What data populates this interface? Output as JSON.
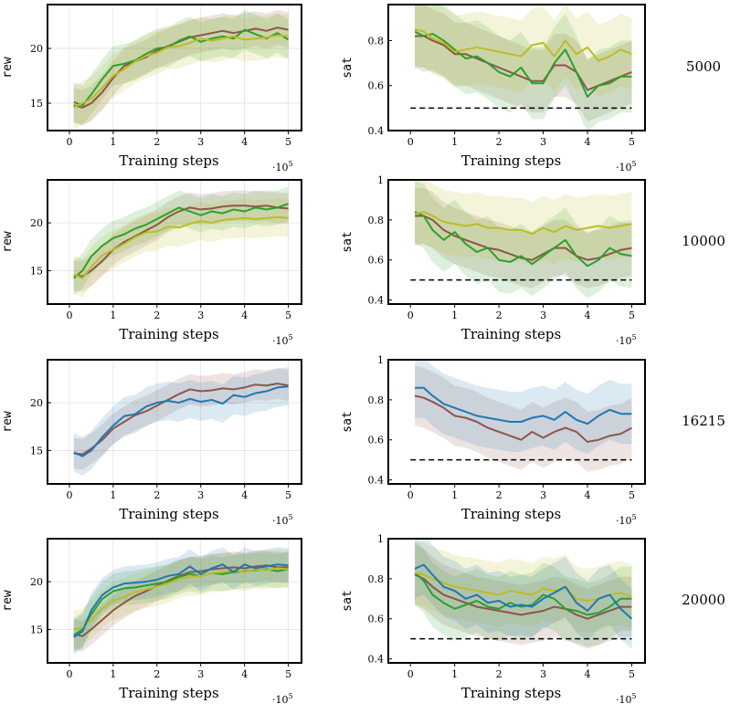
{
  "figure": {
    "xlabel": "Training steps",
    "x_multiplier_base": "·10",
    "x_multiplier_exp": "5",
    "rew_ylabel": "rew",
    "sat_ylabel": "sat",
    "colors": {
      "brown": "#8c564b",
      "green": "#2ca02c",
      "olive": "#bcbd22",
      "blue": "#1f77b4",
      "threshold": "#000000"
    }
  },
  "chart_data": [
    {
      "type": "line",
      "row_label": "5000",
      "metric": "rew",
      "xlabel": "Training steps",
      "ylabel": "rew",
      "xlim": [
        -0.5,
        5.3
      ],
      "ylim": [
        12.5,
        24
      ],
      "xticks": [
        "0",
        "1",
        "2",
        "3",
        "4",
        "5"
      ],
      "yticks": [
        "15",
        "20"
      ],
      "grid": true,
      "x": [
        0.1,
        0.3,
        0.5,
        0.75,
        1.0,
        1.25,
        1.5,
        1.75,
        2.0,
        2.25,
        2.5,
        2.75,
        3.0,
        3.25,
        3.5,
        3.75,
        4.0,
        4.25,
        4.5,
        4.75,
        5.0
      ],
      "series": [
        {
          "color": "brown",
          "values": [
            14.8,
            14.6,
            15.0,
            16.0,
            17.3,
            18.4,
            18.8,
            19.2,
            19.8,
            20.2,
            20.6,
            21.0,
            21.2,
            21.4,
            21.6,
            21.4,
            21.6,
            21.8,
            21.6,
            21.9,
            21.7
          ],
          "band": 1.6
        },
        {
          "color": "green",
          "values": [
            15.1,
            14.8,
            15.8,
            17.2,
            18.4,
            18.6,
            18.9,
            19.5,
            20.0,
            20.1,
            20.7,
            21.1,
            20.6,
            20.9,
            21.1,
            20.9,
            21.7,
            21.3,
            20.9,
            21.4,
            20.8
          ],
          "band": 1.8
        },
        {
          "color": "olive",
          "values": [
            14.6,
            15.0,
            15.4,
            16.4,
            17.5,
            18.1,
            18.8,
            19.3,
            19.6,
            20.1,
            20.2,
            20.5,
            20.9,
            20.7,
            20.9,
            21.1,
            20.8,
            20.9,
            21.0,
            21.2,
            21.1
          ],
          "band": 2.0
        }
      ]
    },
    {
      "type": "line",
      "row_label": "5000",
      "metric": "sat",
      "xlabel": "Training steps",
      "ylabel": "sat",
      "xlim": [
        -0.5,
        5.3
      ],
      "ylim": [
        0.4,
        0.96
      ],
      "xticks": [
        "0",
        "1",
        "2",
        "3",
        "4",
        "5"
      ],
      "yticks": [
        "0.4",
        "0.6",
        "0.8"
      ],
      "grid": false,
      "threshold": 0.5,
      "x": [
        0.1,
        0.3,
        0.5,
        0.75,
        1.0,
        1.25,
        1.5,
        1.75,
        2.0,
        2.25,
        2.5,
        2.75,
        3.0,
        3.25,
        3.5,
        3.75,
        4.0,
        4.25,
        4.5,
        4.75,
        5.0
      ],
      "series": [
        {
          "color": "brown",
          "values": [
            0.82,
            0.82,
            0.8,
            0.78,
            0.74,
            0.74,
            0.72,
            0.7,
            0.68,
            0.66,
            0.64,
            0.62,
            0.62,
            0.69,
            0.69,
            0.66,
            0.58,
            0.6,
            0.62,
            0.64,
            0.66
          ],
          "band": 0.14
        },
        {
          "color": "green",
          "values": [
            0.84,
            0.82,
            0.83,
            0.8,
            0.76,
            0.72,
            0.73,
            0.7,
            0.66,
            0.64,
            0.68,
            0.61,
            0.61,
            0.7,
            0.76,
            0.66,
            0.55,
            0.6,
            0.61,
            0.64,
            0.64
          ],
          "band": 0.16
        },
        {
          "color": "olive",
          "values": [
            0.85,
            0.84,
            0.81,
            0.79,
            0.75,
            0.76,
            0.77,
            0.76,
            0.75,
            0.74,
            0.73,
            0.78,
            0.79,
            0.73,
            0.8,
            0.74,
            0.77,
            0.71,
            0.73,
            0.76,
            0.74
          ],
          "band": 0.16
        }
      ]
    },
    {
      "type": "line",
      "row_label": "10000",
      "metric": "rew",
      "xlabel": "Training steps",
      "ylabel": "rew",
      "xlim": [
        -0.5,
        5.3
      ],
      "ylim": [
        11.5,
        24.5
      ],
      "xticks": [
        "0",
        "1",
        "2",
        "3",
        "4",
        "5"
      ],
      "yticks": [
        "15",
        "20"
      ],
      "grid": true,
      "x": [
        0.1,
        0.3,
        0.5,
        0.75,
        1.0,
        1.25,
        1.5,
        1.75,
        2.0,
        2.25,
        2.5,
        2.75,
        3.0,
        3.25,
        3.5,
        3.75,
        4.0,
        4.25,
        4.5,
        4.75,
        5.0
      ],
      "series": [
        {
          "color": "brown",
          "values": [
            14.5,
            14.4,
            15.0,
            16.0,
            17.2,
            18.0,
            18.6,
            19.2,
            19.8,
            20.6,
            21.2,
            21.6,
            21.4,
            21.5,
            21.7,
            21.8,
            21.8,
            21.7,
            21.8,
            21.6,
            21.5
          ],
          "band": 1.6
        },
        {
          "color": "green",
          "values": [
            14.2,
            15.0,
            16.5,
            17.6,
            18.4,
            18.8,
            19.4,
            19.8,
            20.4,
            21.0,
            21.6,
            21.2,
            20.8,
            21.2,
            21.0,
            21.4,
            21.2,
            21.6,
            21.4,
            21.6,
            22.0
          ],
          "band": 1.8
        },
        {
          "color": "olive",
          "values": [
            14.6,
            14.2,
            15.4,
            16.6,
            17.2,
            17.8,
            18.5,
            19.0,
            19.1,
            19.6,
            19.5,
            19.9,
            20.2,
            20.0,
            20.3,
            20.4,
            20.5,
            20.4,
            20.5,
            20.6,
            20.5
          ],
          "band": 2.0
        }
      ]
    },
    {
      "type": "line",
      "row_label": "10000",
      "metric": "sat",
      "xlabel": "Training steps",
      "ylabel": "sat",
      "xlim": [
        -0.5,
        5.3
      ],
      "ylim": [
        0.38,
        1.0
      ],
      "xticks": [
        "0",
        "1",
        "2",
        "3",
        "4",
        "5"
      ],
      "yticks": [
        "0.4",
        "0.6",
        "0.8",
        "1"
      ],
      "grid": false,
      "threshold": 0.5,
      "x": [
        0.1,
        0.3,
        0.5,
        0.75,
        1.0,
        1.25,
        1.5,
        1.75,
        2.0,
        2.25,
        2.5,
        2.75,
        3.0,
        3.25,
        3.5,
        3.75,
        4.0,
        4.25,
        4.5,
        4.75,
        5.0
      ],
      "series": [
        {
          "color": "brown",
          "values": [
            0.82,
            0.82,
            0.8,
            0.75,
            0.72,
            0.7,
            0.68,
            0.66,
            0.65,
            0.63,
            0.61,
            0.6,
            0.63,
            0.66,
            0.66,
            0.62,
            0.6,
            0.61,
            0.63,
            0.65,
            0.66
          ],
          "band": 0.14
        },
        {
          "color": "green",
          "values": [
            0.84,
            0.82,
            0.75,
            0.7,
            0.74,
            0.68,
            0.64,
            0.66,
            0.6,
            0.59,
            0.62,
            0.58,
            0.62,
            0.66,
            0.7,
            0.62,
            0.57,
            0.6,
            0.66,
            0.63,
            0.62
          ],
          "band": 0.16
        },
        {
          "color": "olive",
          "values": [
            0.83,
            0.84,
            0.82,
            0.79,
            0.78,
            0.77,
            0.78,
            0.76,
            0.76,
            0.75,
            0.75,
            0.73,
            0.76,
            0.74,
            0.77,
            0.75,
            0.76,
            0.77,
            0.76,
            0.77,
            0.78
          ],
          "band": 0.16
        }
      ]
    },
    {
      "type": "line",
      "row_label": "16215",
      "metric": "rew",
      "xlabel": "Training steps",
      "ylabel": "rew",
      "xlim": [
        -0.5,
        5.3
      ],
      "ylim": [
        11.5,
        24.5
      ],
      "xticks": [
        "0",
        "1",
        "2",
        "3",
        "4",
        "5"
      ],
      "yticks": [
        "15",
        "20"
      ],
      "grid": true,
      "x": [
        0.1,
        0.3,
        0.5,
        0.75,
        1.0,
        1.25,
        1.5,
        1.75,
        2.0,
        2.25,
        2.5,
        2.75,
        3.0,
        3.25,
        3.5,
        3.75,
        4.0,
        4.25,
        4.5,
        4.75,
        5.0
      ],
      "series": [
        {
          "color": "brown",
          "values": [
            14.7,
            14.6,
            15.2,
            16.1,
            17.3,
            18.0,
            18.7,
            19.1,
            19.7,
            20.3,
            20.9,
            21.4,
            21.2,
            21.3,
            21.5,
            21.4,
            21.6,
            21.9,
            21.8,
            22.0,
            21.8
          ],
          "band": 1.6
        },
        {
          "color": "blue",
          "values": [
            14.8,
            14.4,
            15.0,
            16.4,
            17.6,
            18.6,
            18.8,
            19.6,
            20.0,
            20.2,
            20.0,
            20.4,
            20.1,
            20.3,
            19.9,
            20.8,
            20.6,
            21.0,
            21.2,
            21.6,
            21.7
          ],
          "band": 2.0
        }
      ]
    },
    {
      "type": "line",
      "row_label": "16215",
      "metric": "sat",
      "xlabel": "Training steps",
      "ylabel": "sat",
      "xlim": [
        -0.5,
        5.3
      ],
      "ylim": [
        0.38,
        1.0
      ],
      "xticks": [
        "0",
        "1",
        "2",
        "3",
        "4",
        "5"
      ],
      "yticks": [
        "0.4",
        "0.6",
        "0.8",
        "1"
      ],
      "grid": false,
      "threshold": 0.5,
      "x": [
        0.1,
        0.3,
        0.5,
        0.75,
        1.0,
        1.25,
        1.5,
        1.75,
        2.0,
        2.25,
        2.5,
        2.75,
        3.0,
        3.25,
        3.5,
        3.75,
        4.0,
        4.25,
        4.5,
        4.75,
        5.0
      ],
      "series": [
        {
          "color": "brown",
          "values": [
            0.82,
            0.81,
            0.79,
            0.76,
            0.72,
            0.71,
            0.69,
            0.66,
            0.64,
            0.62,
            0.6,
            0.64,
            0.61,
            0.64,
            0.66,
            0.64,
            0.59,
            0.6,
            0.62,
            0.63,
            0.66
          ],
          "band": 0.15
        },
        {
          "color": "blue",
          "values": [
            0.86,
            0.86,
            0.82,
            0.78,
            0.76,
            0.74,
            0.72,
            0.71,
            0.7,
            0.69,
            0.69,
            0.71,
            0.72,
            0.7,
            0.74,
            0.7,
            0.68,
            0.72,
            0.75,
            0.73,
            0.73
          ],
          "band": 0.15
        }
      ]
    },
    {
      "type": "line",
      "row_label": "20000",
      "metric": "rew",
      "xlabel": "Training steps",
      "ylabel": "rew",
      "xlim": [
        -0.5,
        5.3
      ],
      "ylim": [
        11.5,
        24.5
      ],
      "xticks": [
        "0",
        "1",
        "2",
        "3",
        "4",
        "5"
      ],
      "yticks": [
        "15",
        "20"
      ],
      "grid": true,
      "x": [
        0.1,
        0.3,
        0.5,
        0.75,
        1.0,
        1.25,
        1.5,
        1.75,
        2.0,
        2.25,
        2.5,
        2.75,
        3.0,
        3.25,
        3.5,
        3.75,
        4.0,
        4.25,
        4.5,
        4.75,
        5.0
      ],
      "series": [
        {
          "color": "brown",
          "values": [
            14.5,
            14.3,
            15.0,
            16.0,
            17.0,
            17.8,
            18.5,
            19.0,
            19.6,
            20.1,
            20.6,
            21.0,
            21.1,
            21.3,
            21.4,
            21.5,
            21.4,
            21.6,
            21.7,
            21.5,
            21.5
          ],
          "band": 1.6
        },
        {
          "color": "green",
          "values": [
            14.4,
            15.0,
            16.6,
            18.2,
            19.0,
            19.3,
            19.4,
            19.6,
            19.8,
            20.0,
            20.5,
            20.8,
            20.6,
            20.9,
            20.8,
            21.0,
            21.1,
            21.2,
            21.3,
            21.1,
            21.3
          ],
          "band": 1.8
        },
        {
          "color": "olive",
          "values": [
            15.0,
            15.2,
            16.0,
            17.2,
            18.0,
            18.4,
            18.9,
            19.2,
            19.5,
            19.8,
            20.3,
            20.5,
            20.6,
            20.9,
            21.0,
            21.2,
            21.0,
            21.3,
            21.2,
            21.4,
            21.3
          ],
          "band": 2.0
        },
        {
          "color": "blue",
          "values": [
            14.2,
            14.8,
            17.0,
            18.6,
            19.4,
            19.8,
            19.9,
            20.0,
            20.2,
            20.6,
            20.8,
            21.6,
            20.8,
            21.4,
            21.8,
            21.0,
            21.8,
            21.4,
            21.6,
            21.8,
            21.7
          ],
          "band": 1.8
        }
      ]
    },
    {
      "type": "line",
      "row_label": "20000",
      "metric": "sat",
      "xlabel": "Training steps",
      "ylabel": "sat",
      "xlim": [
        -0.5,
        5.3
      ],
      "ylim": [
        0.38,
        1.0
      ],
      "xticks": [
        "0",
        "1",
        "2",
        "3",
        "4",
        "5"
      ],
      "yticks": [
        "0.4",
        "0.6",
        "0.8",
        "1"
      ],
      "grid": false,
      "threshold": 0.5,
      "x": [
        0.1,
        0.3,
        0.5,
        0.75,
        1.0,
        1.25,
        1.5,
        1.75,
        2.0,
        2.25,
        2.5,
        2.75,
        3.0,
        3.25,
        3.5,
        3.75,
        4.0,
        4.25,
        4.5,
        4.75,
        5.0
      ],
      "series": [
        {
          "color": "brown",
          "values": [
            0.82,
            0.8,
            0.76,
            0.72,
            0.7,
            0.68,
            0.66,
            0.65,
            0.64,
            0.63,
            0.62,
            0.63,
            0.64,
            0.66,
            0.65,
            0.62,
            0.6,
            0.62,
            0.64,
            0.66,
            0.66
          ],
          "band": 0.15
        },
        {
          "color": "green",
          "values": [
            0.83,
            0.79,
            0.72,
            0.68,
            0.65,
            0.67,
            0.69,
            0.66,
            0.65,
            0.68,
            0.66,
            0.67,
            0.72,
            0.7,
            0.65,
            0.64,
            0.62,
            0.63,
            0.66,
            0.7,
            0.7
          ],
          "band": 0.16
        },
        {
          "color": "olive",
          "values": [
            0.83,
            0.82,
            0.8,
            0.78,
            0.76,
            0.75,
            0.74,
            0.73,
            0.72,
            0.74,
            0.73,
            0.72,
            0.75,
            0.74,
            0.76,
            0.7,
            0.69,
            0.7,
            0.72,
            0.73,
            0.71
          ],
          "band": 0.16
        },
        {
          "color": "blue",
          "values": [
            0.85,
            0.87,
            0.82,
            0.76,
            0.74,
            0.7,
            0.72,
            0.68,
            0.69,
            0.66,
            0.67,
            0.66,
            0.7,
            0.73,
            0.76,
            0.68,
            0.64,
            0.7,
            0.72,
            0.65,
            0.6
          ],
          "band": 0.15
        }
      ]
    }
  ]
}
